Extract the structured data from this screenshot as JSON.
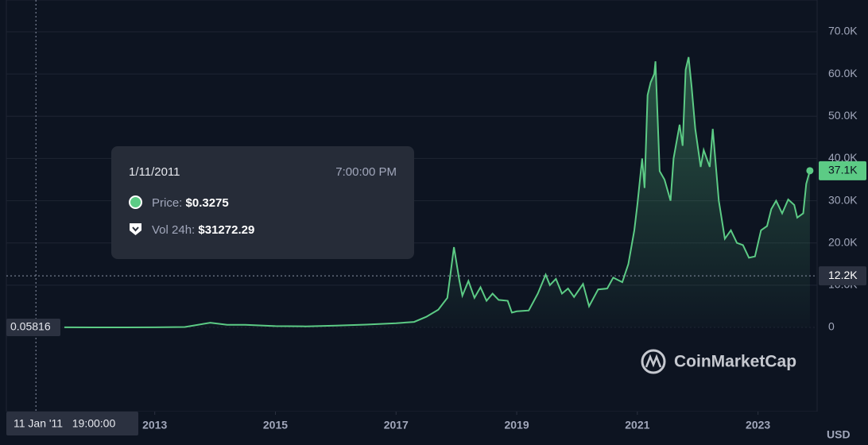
{
  "chart_data": {
    "type": "line",
    "color": "#5ccb85",
    "currency": "USD",
    "watermark": "CoinMarketCap",
    "xlim": [
      2010.54,
      2023.98
    ],
    "xticks": [
      2013,
      2015,
      2017,
      2019,
      2021,
      2023
    ],
    "ylim": [
      -19950,
      77530
    ],
    "yticks": [
      0,
      {
        "value": 10000,
        "label": "10.0K"
      },
      {
        "value": 20000,
        "label": "20.0K"
      },
      {
        "value": 30000,
        "label": "30.0K"
      },
      {
        "value": 40000,
        "label": "40.0K"
      },
      {
        "value": 50000,
        "label": "50.0K"
      },
      {
        "value": 60000,
        "label": "60.0K"
      },
      {
        "value": 70000,
        "label": "70.0K"
      }
    ],
    "grid": true,
    "x": [
      2011.5,
      2012,
      2012.5,
      2013,
      2013.5,
      2013.92,
      2014.2,
      2014.5,
      2015,
      2015.5,
      2016,
      2016.5,
      2017,
      2017.3,
      2017.5,
      2017.7,
      2017.85,
      2017.96,
      2018.05,
      2018.1,
      2018.2,
      2018.3,
      2018.4,
      2018.5,
      2018.6,
      2018.7,
      2018.85,
      2018.92,
      2019.0,
      2019.2,
      2019.35,
      2019.48,
      2019.55,
      2019.65,
      2019.75,
      2019.85,
      2019.95,
      2020.1,
      2020.2,
      2020.35,
      2020.5,
      2020.6,
      2020.75,
      2020.85,
      2020.95,
      2021.0,
      2021.08,
      2021.12,
      2021.17,
      2021.22,
      2021.28,
      2021.3,
      2021.37,
      2021.45,
      2021.55,
      2021.6,
      2021.7,
      2021.75,
      2021.8,
      2021.85,
      2021.9,
      2021.96,
      2022.05,
      2022.1,
      2022.2,
      2022.25,
      2022.35,
      2022.45,
      2022.55,
      2022.65,
      2022.75,
      2022.85,
      2022.95,
      2023.05,
      2023.15,
      2023.22,
      2023.3,
      2023.4,
      2023.5,
      2023.6,
      2023.65,
      2023.75,
      2023.8,
      2023.86
    ],
    "values": [
      15,
      5,
      7,
      13,
      100,
      1100,
      600,
      600,
      300,
      250,
      430,
      650,
      1000,
      1300,
      2500,
      4200,
      7000,
      19000,
      11000,
      7500,
      11000,
      7000,
      9500,
      6300,
      8000,
      6500,
      6300,
      3500,
      3800,
      4000,
      8000,
      12500,
      10000,
      11500,
      8000,
      9200,
      7200,
      10300,
      5000,
      9000,
      9200,
      11800,
      10700,
      15000,
      23000,
      29000,
      40000,
      33000,
      55000,
      58000,
      60000,
      63000,
      37000,
      35000,
      30000,
      40000,
      48000,
      43000,
      61000,
      64000,
      57000,
      47000,
      38000,
      42000,
      38000,
      47000,
      30000,
      21000,
      23000,
      20000,
      19500,
      16500,
      16800,
      23000,
      24000,
      28000,
      30000,
      27000,
      30300,
      29000,
      26000,
      27000,
      34000,
      37100
    ],
    "last_price": {
      "value": 37100,
      "label": "37.1K"
    },
    "base_price": {
      "value": 0.05816,
      "label": "0.05816"
    },
    "crosshair": {
      "x": 2011.03,
      "x_label": "11 Jan '11   19:00:00",
      "y": {
        "value": 12200,
        "label": "12.2K"
      }
    },
    "tooltip": {
      "date": "1/11/2011",
      "time": "7:00:00 PM",
      "price_label": "Price:",
      "price": "$0.3275",
      "volume_label": "Vol 24h:",
      "volume": "$31272.29"
    }
  }
}
